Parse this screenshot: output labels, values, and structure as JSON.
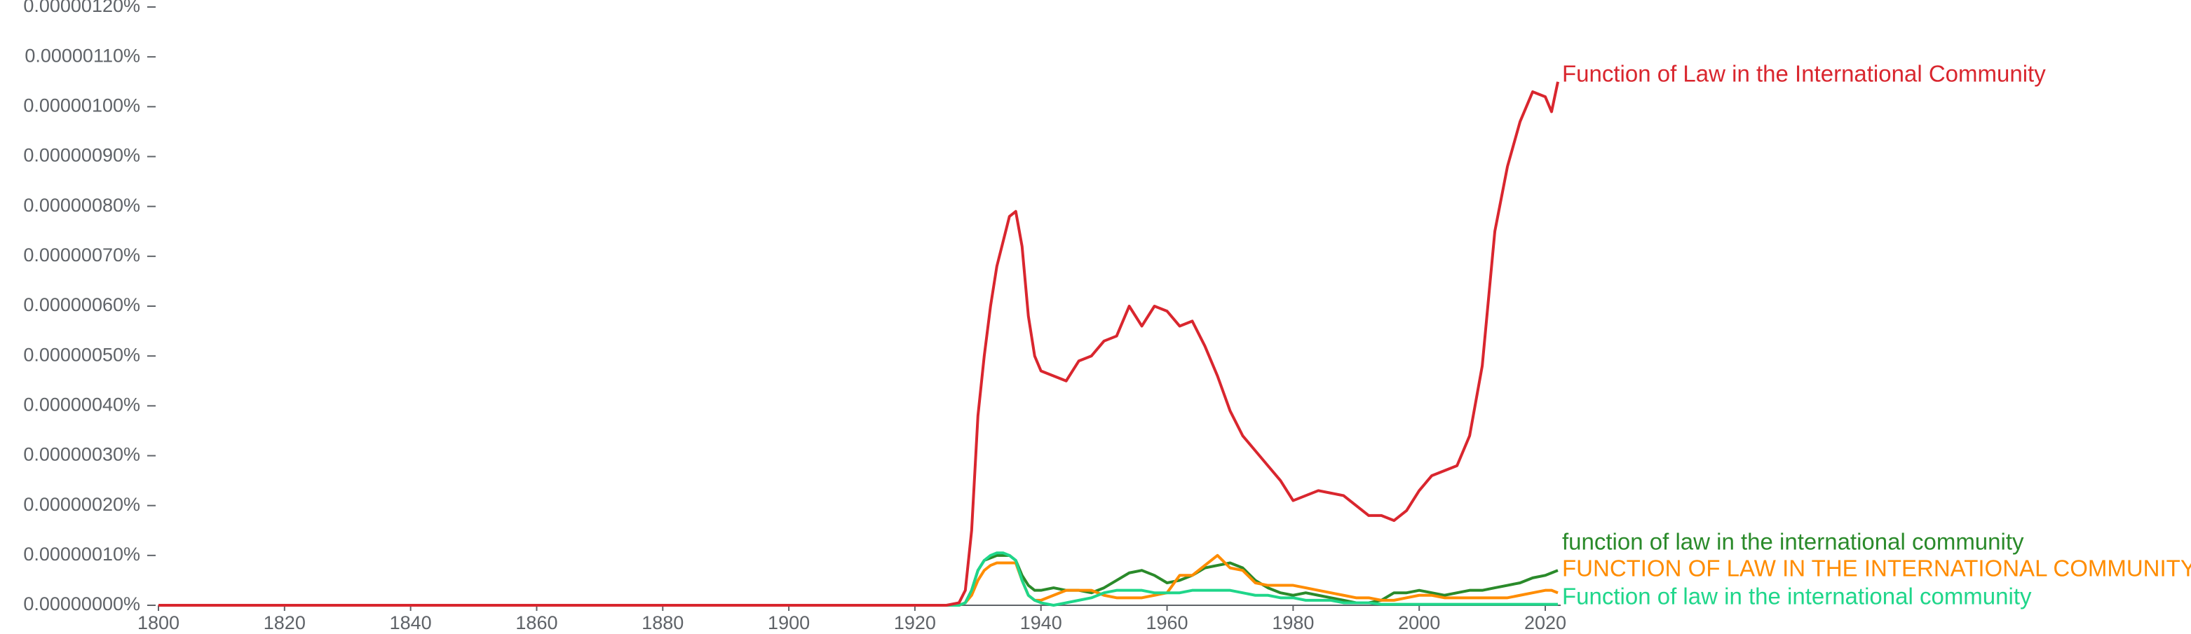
{
  "chart_data": {
    "type": "line",
    "x": [
      1800,
      1825,
      1850,
      1875,
      1900,
      1925,
      1927,
      1928,
      1929,
      1930,
      1931,
      1932,
      1933,
      1934,
      1935,
      1936,
      1937,
      1938,
      1939,
      1940,
      1942,
      1944,
      1946,
      1948,
      1950,
      1952,
      1954,
      1956,
      1958,
      1960,
      1962,
      1964,
      1966,
      1968,
      1970,
      1972,
      1974,
      1976,
      1978,
      1980,
      1982,
      1984,
      1986,
      1988,
      1990,
      1992,
      1994,
      1996,
      1998,
      2000,
      2002,
      2004,
      2006,
      2008,
      2010,
      2012,
      2014,
      2016,
      2018,
      2020,
      2021,
      2022
    ],
    "series": [
      {
        "name": "Function of Law in the International Community",
        "color": "#d9262e",
        "values": [
          0,
          0,
          0,
          0,
          0,
          0,
          5e-09,
          3e-08,
          1.5e-07,
          3.8e-07,
          5e-07,
          6e-07,
          6.8e-07,
          7.3e-07,
          7.8e-07,
          7.9e-07,
          7.2e-07,
          5.8e-07,
          5e-07,
          4.7e-07,
          4.6e-07,
          4.5e-07,
          4.9e-07,
          5e-07,
          5.3e-07,
          5.4e-07,
          6e-07,
          5.6e-07,
          6e-07,
          5.9e-07,
          5.6e-07,
          5.7e-07,
          5.2e-07,
          4.6e-07,
          3.9e-07,
          3.4e-07,
          3.1e-07,
          2.8e-07,
          2.5e-07,
          2.1e-07,
          2.2e-07,
          2.3e-07,
          2.25e-07,
          2.2e-07,
          2e-07,
          1.8e-07,
          1.8e-07,
          1.7e-07,
          1.9e-07,
          2.3e-07,
          2.6e-07,
          2.7e-07,
          2.8e-07,
          3.4e-07,
          4.8e-07,
          7.5e-07,
          8.8e-07,
          9.7e-07,
          1.03e-06,
          1.02e-06,
          9.9e-07,
          1.05e-06
        ]
      },
      {
        "name": "function of law in the international community",
        "color": "#2a8a2a",
        "values": [
          0,
          0,
          0,
          0,
          0,
          0,
          0,
          5e-09,
          3e-08,
          7e-08,
          9e-08,
          9.5e-08,
          1e-07,
          1e-07,
          1e-07,
          9e-08,
          6e-08,
          4e-08,
          3e-08,
          3e-08,
          3.5e-08,
          3e-08,
          3e-08,
          2.5e-08,
          3.5e-08,
          5e-08,
          6.5e-08,
          7e-08,
          6e-08,
          4.5e-08,
          5e-08,
          6e-08,
          7.5e-08,
          8e-08,
          8.5e-08,
          7.5e-08,
          5e-08,
          3.5e-08,
          2.5e-08,
          2e-08,
          2.5e-08,
          2e-08,
          1.5e-08,
          1e-08,
          5e-09,
          5e-09,
          1e-08,
          2.5e-08,
          2.5e-08,
          3e-08,
          2.5e-08,
          2e-08,
          2.5e-08,
          3e-08,
          3e-08,
          3.5e-08,
          4e-08,
          4.5e-08,
          5.5e-08,
          6e-08,
          6.5e-08,
          7e-08
        ]
      },
      {
        "name": "FUNCTION OF LAW IN THE INTERNATIONAL COMMUNITY",
        "color": "#ff8c00",
        "values": [
          0,
          0,
          0,
          0,
          0,
          0,
          0,
          5e-09,
          2e-08,
          5e-08,
          7e-08,
          8e-08,
          8.5e-08,
          8.5e-08,
          8.5e-08,
          8.5e-08,
          5e-08,
          2e-08,
          1e-08,
          1e-08,
          2e-08,
          3e-08,
          3e-08,
          3e-08,
          2e-08,
          1.5e-08,
          1.5e-08,
          1.5e-08,
          2e-08,
          2.5e-08,
          6e-08,
          6e-08,
          8e-08,
          1e-07,
          7.5e-08,
          7e-08,
          4.5e-08,
          4e-08,
          4e-08,
          4e-08,
          3.5e-08,
          3e-08,
          2.5e-08,
          2e-08,
          1.5e-08,
          1.5e-08,
          1e-08,
          1e-08,
          1.5e-08,
          2e-08,
          2e-08,
          1.5e-08,
          1.5e-08,
          1.5e-08,
          1.5e-08,
          1.5e-08,
          1.5e-08,
          2e-08,
          2.5e-08,
          3e-08,
          3e-08,
          2.5e-08
        ]
      },
      {
        "name": "Function of law in the international community",
        "color": "#1fd68a",
        "values": [
          0,
          0,
          0,
          0,
          0,
          0,
          0,
          5e-09,
          3e-08,
          7e-08,
          9e-08,
          1e-07,
          1.05e-07,
          1.05e-07,
          1e-07,
          9e-08,
          5e-08,
          2e-08,
          1e-08,
          5e-09,
          0,
          5e-09,
          1e-08,
          1.5e-08,
          2.5e-08,
          3e-08,
          3e-08,
          3e-08,
          2.5e-08,
          2.5e-08,
          2.5e-08,
          3e-08,
          3e-08,
          3e-08,
          3e-08,
          2.5e-08,
          2e-08,
          2e-08,
          1.5e-08,
          1.5e-08,
          1e-08,
          1e-08,
          1e-08,
          5e-09,
          5e-09,
          5e-09,
          2e-09,
          2e-09,
          2e-09,
          2e-09,
          2e-09,
          2e-09,
          2e-09,
          2e-09,
          2e-09,
          2e-09,
          2e-09,
          2e-09,
          2e-09,
          2e-09,
          2e-09,
          2e-09
        ]
      }
    ],
    "xlim": [
      1800,
      2020
    ],
    "xticks": [
      1800,
      1820,
      1840,
      1860,
      1880,
      1900,
      1920,
      1940,
      1960,
      1980,
      2000,
      2020
    ],
    "ylim": [
      0,
      1.2e-06
    ],
    "yticks": [
      {
        "value": 0,
        "label": "0.00000000%"
      },
      {
        "value": 1e-07,
        "label": "0.00000010%"
      },
      {
        "value": 2e-07,
        "label": "0.00000020%"
      },
      {
        "value": 3e-07,
        "label": "0.00000030%"
      },
      {
        "value": 4e-07,
        "label": "0.00000040%"
      },
      {
        "value": 5e-07,
        "label": "0.00000050%"
      },
      {
        "value": 6e-07,
        "label": "0.00000060%"
      },
      {
        "value": 7e-07,
        "label": "0.00000070%"
      },
      {
        "value": 8e-07,
        "label": "0.00000080%"
      },
      {
        "value": 9e-07,
        "label": "0.00000090%"
      },
      {
        "value": 1e-06,
        "label": "0.00000100%"
      },
      {
        "value": 1.1e-06,
        "label": "0.00000110%"
      },
      {
        "value": 1.2e-06,
        "label": "0.00000120%"
      }
    ]
  }
}
